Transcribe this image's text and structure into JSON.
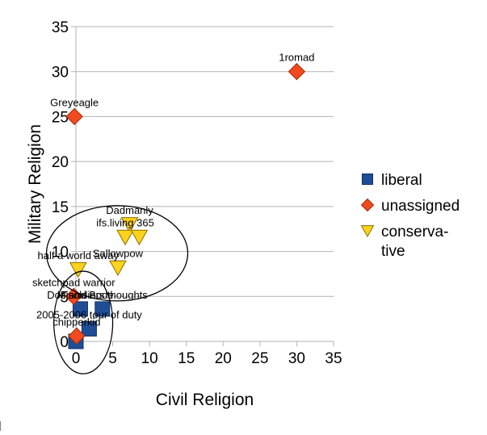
{
  "chart_data": {
    "type": "scatter",
    "title": "",
    "xlabel": "Civil Religion",
    "ylabel": "Military Religion",
    "xlim": [
      0,
      35
    ],
    "ylim": [
      0,
      35
    ],
    "xticks": [
      "0",
      "5",
      "10",
      "15",
      "20",
      "25",
      "30",
      "35"
    ],
    "yticks": [
      "0",
      "5",
      "10",
      "15",
      "20",
      "25",
      "30",
      "35"
    ],
    "grid": "horizontal",
    "legend_position": "right",
    "series": [
      {
        "name": "liberal",
        "marker": "square",
        "color": "#1f4e96",
        "points": [
          {
            "x": 0,
            "y": 0
          },
          {
            "x": 0.6,
            "y": 3.6
          },
          {
            "x": 1.8,
            "y": 1.4
          },
          {
            "x": 3.6,
            "y": 3.6
          }
        ]
      },
      {
        "name": "unassigned",
        "marker": "diamond",
        "color": "#f04a1e",
        "points": [
          {
            "x": 30,
            "y": 30
          },
          {
            "x": -0.2,
            "y": 25
          },
          {
            "x": -0.3,
            "y": 5
          },
          {
            "x": 0.1,
            "y": 0.6
          }
        ]
      },
      {
        "name": "conserva-\ntive",
        "marker": "triangle-down",
        "color": "#ffd21c",
        "points": [
          {
            "x": 7.3,
            "y": 13
          },
          {
            "x": 6.7,
            "y": 11.6
          },
          {
            "x": 8.6,
            "y": 11.6
          },
          {
            "x": 0.3,
            "y": 8
          },
          {
            "x": 5.7,
            "y": 8.2
          }
        ]
      }
    ],
    "point_labels": [
      {
        "text": "1romad",
        "x": 30,
        "y": 30
      },
      {
        "text": "Greyeagle",
        "x": -0.2,
        "y": 25
      },
      {
        "text": "Dadmanly",
        "x": 7.3,
        "y": 13
      },
      {
        "text": "ifs.living 365",
        "x": 6.7,
        "y": 11.6
      },
      {
        "text": "half a world away",
        "x": 0.3,
        "y": 8
      },
      {
        "text": "Sallowpow",
        "x": 5.7,
        "y": 8.2
      },
      {
        "text": "sketchpad warrior",
        "x": -0.3,
        "y": 5
      },
      {
        "text": "Doc and Bode",
        "x": 0.6,
        "y": 3.6
      },
      {
        "text": "Misoldiers thoughts",
        "x": 3.6,
        "y": 3.6
      },
      {
        "text": "2005-2006 tour of duty",
        "x": 1.8,
        "y": 1.4
      },
      {
        "text": "chipperkid",
        "x": 0.1,
        "y": 0.6
      }
    ],
    "annotations": [
      {
        "shape": "ellipse",
        "cx": 5.6,
        "cy": 9.8,
        "rx": 9.6,
        "ry": 5.3
      },
      {
        "shape": "ellipse",
        "cx": 1.0,
        "cy": 2.1,
        "rx": 4.0,
        "ry": 5.7
      }
    ]
  }
}
